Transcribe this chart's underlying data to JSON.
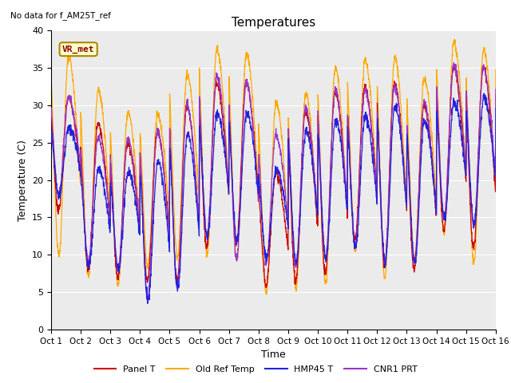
{
  "title": "Temperatures",
  "top_left_text": "No data for f_AM25T_ref",
  "vr_met_label": "VR_met",
  "xlabel": "Time",
  "ylabel": "Temperature (C)",
  "ylim": [
    0,
    40
  ],
  "yticks": [
    0,
    5,
    10,
    15,
    20,
    25,
    30,
    35,
    40
  ],
  "x_tick_labels": [
    "Oct 1",
    "Oct 2",
    "Oct 3",
    "Oct 4",
    "Oct 5",
    "Oct 6",
    "Oct 7",
    "Oct 8",
    "Oct 9",
    "Oct 10",
    "Oct 11",
    "Oct 12",
    "Oct 13",
    "Oct 14",
    "Oct 15",
    "Oct 16"
  ],
  "series_colors": {
    "Panel T": "#cc0000",
    "Old Ref Temp": "#ffaa00",
    "HMP45 T": "#2222dd",
    "CNR1 PRT": "#9933cc"
  },
  "legend_entries": [
    "Panel T",
    "Old Ref Temp",
    "HMP45 T",
    "CNR1 PRT"
  ],
  "bg_color": "#ebebeb",
  "fig_color": "#ffffff",
  "n_days": 15,
  "points_per_day": 144,
  "day_maxs_orange": [
    36.5,
    32.0,
    29.0,
    28.8,
    34.0,
    37.5,
    37.0,
    30.5,
    31.5,
    35.0,
    36.0,
    36.5,
    33.5,
    38.5,
    37.5
  ],
  "day_maxs_red": [
    31.0,
    27.5,
    25.0,
    26.5,
    30.0,
    33.0,
    33.0,
    21.0,
    29.0,
    32.0,
    32.5,
    33.0,
    30.0,
    35.0,
    35.0
  ],
  "day_maxs_blue": [
    27.0,
    21.5,
    21.0,
    22.5,
    26.0,
    29.0,
    29.0,
    21.5,
    26.5,
    28.0,
    28.5,
    30.0,
    28.0,
    30.5,
    31.0
  ],
  "day_maxs_purple": [
    31.0,
    25.5,
    25.5,
    26.5,
    30.0,
    34.0,
    33.0,
    26.0,
    29.5,
    32.0,
    32.0,
    32.5,
    30.5,
    35.5,
    35.0
  ],
  "day_mins_orange": [
    10.0,
    7.0,
    6.0,
    8.5,
    9.5,
    10.0,
    9.5,
    5.0,
    5.5,
    6.0,
    10.5,
    7.0,
    9.5,
    13.0,
    9.0
  ],
  "day_mins_red": [
    16.0,
    8.0,
    7.0,
    6.5,
    6.5,
    11.0,
    11.5,
    6.0,
    6.5,
    7.5,
    12.0,
    8.5,
    8.0,
    13.5,
    11.0
  ],
  "day_mins_blue": [
    18.0,
    8.5,
    8.0,
    4.0,
    5.5,
    12.5,
    12.0,
    9.5,
    9.0,
    9.5,
    11.0,
    9.0,
    9.0,
    15.0,
    14.0
  ],
  "day_mins_purple": [
    18.0,
    9.0,
    8.0,
    4.0,
    5.5,
    12.5,
    9.5,
    9.0,
    8.5,
    9.5,
    11.0,
    9.0,
    9.0,
    15.0,
    14.0
  ]
}
